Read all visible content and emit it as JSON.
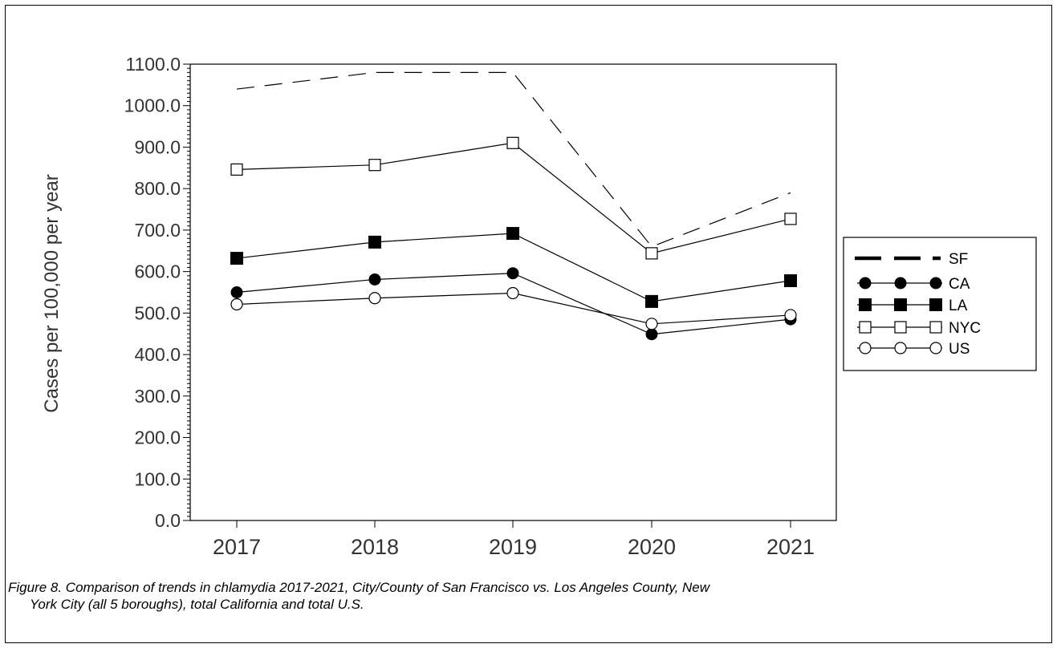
{
  "caption": {
    "line1": "Figure 8.  Comparison of trends in chlamydia 2017-2021, City/County of San Francisco vs. Los Angeles County, New",
    "line2": "York City (all 5 boroughs), total California and total U.S."
  },
  "chart_data": {
    "type": "line",
    "title": "",
    "xlabel": "",
    "ylabel": "Cases per 100,000 per year",
    "categories": [
      "2017",
      "2018",
      "2019",
      "2020",
      "2021"
    ],
    "ylim": [
      0,
      1100
    ],
    "yticks": [
      "0.0",
      "100.0",
      "200.0",
      "300.0",
      "400.0",
      "500.0",
      "600.0",
      "700.0",
      "800.0",
      "900.0",
      "1000.0",
      "1100.0"
    ],
    "grid": false,
    "legend_position": "right",
    "series": [
      {
        "name": "SF",
        "values": [
          1040,
          1080,
          1080,
          660,
          790
        ],
        "style": "dashed",
        "marker": "none"
      },
      {
        "name": "CA",
        "values": [
          550,
          581,
          596,
          449,
          485
        ],
        "style": "solid",
        "marker": "filled-circle"
      },
      {
        "name": "LA",
        "values": [
          632,
          671,
          692,
          528,
          578
        ],
        "style": "solid",
        "marker": "filled-square"
      },
      {
        "name": "NYC",
        "values": [
          846,
          857,
          910,
          644,
          727
        ],
        "style": "solid",
        "marker": "open-square"
      },
      {
        "name": "US",
        "values": [
          521,
          536,
          548,
          474,
          495
        ],
        "style": "solid",
        "marker": "open-circle"
      }
    ],
    "colors": {
      "line": "#000000",
      "background": "#ffffff"
    }
  }
}
